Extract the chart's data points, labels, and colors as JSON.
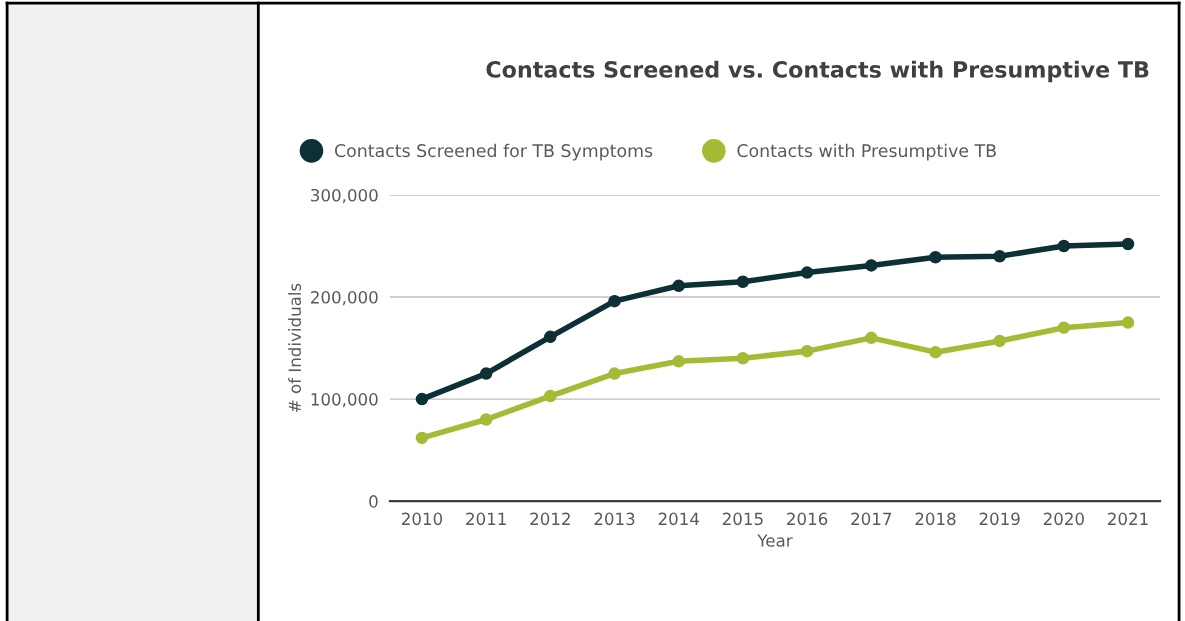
{
  "chart_data": {
    "type": "line",
    "title": "Contacts Screened vs. Contacts with Presumptive TB",
    "xlabel": "Year",
    "ylabel": "# of Individuals",
    "categories": [
      "2010",
      "2011",
      "2012",
      "2013",
      "2014",
      "2015",
      "2016",
      "2017",
      "2018",
      "2019",
      "2020",
      "2021"
    ],
    "series": [
      {
        "name": "Contacts Screened for TB Symptoms",
        "color": "#0d2f36",
        "values": [
          100000,
          125000,
          161000,
          196000,
          211000,
          215000,
          224000,
          231000,
          239000,
          240000,
          250000,
          252000
        ]
      },
      {
        "name": "Contacts with Presumptive TB",
        "color": "#a4bb36",
        "values": [
          62000,
          80000,
          103000,
          125000,
          137000,
          140000,
          147000,
          160000,
          146000,
          157000,
          170000,
          175000
        ]
      }
    ],
    "ylim": [
      0,
      300000
    ],
    "yticks": [
      0,
      {
        "value": 100000,
        "label": "100,000"
      },
      {
        "value": 200000,
        "label": "200,000"
      },
      {
        "value": 300000,
        "label": "300,000"
      }
    ],
    "grid": "y",
    "legend": "top left",
    "marker": "circle",
    "line_style": "solid"
  }
}
